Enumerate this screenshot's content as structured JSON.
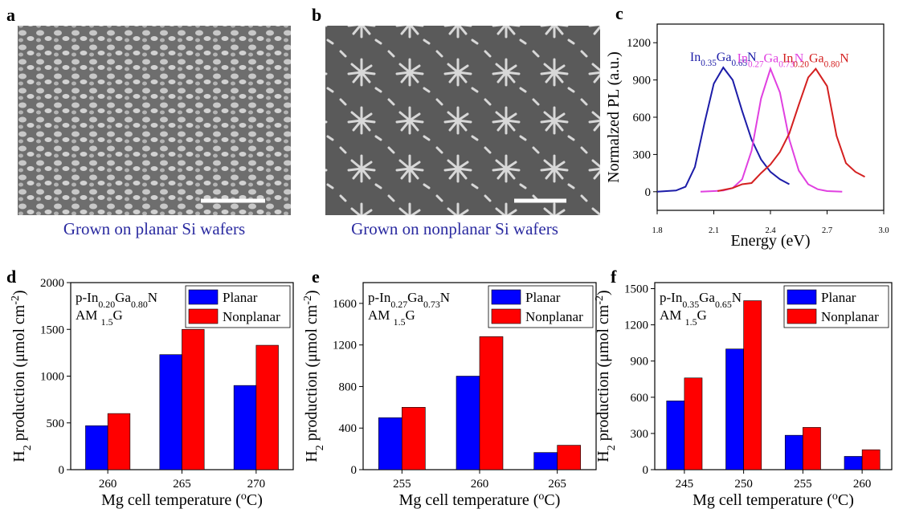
{
  "images": [
    {
      "label": "a",
      "caption": "Grown on planar Si wafers"
    },
    {
      "label": "b",
      "caption": "Grown on nonplanar Si wafers"
    }
  ],
  "chart_data": [
    {
      "type": "line",
      "label": "c",
      "xlabel": "Energy (eV)",
      "ylabel": "Normalzed PL (a.u.)",
      "xlim": [
        1.8,
        3.0
      ],
      "xticks": [
        1.8,
        2.1,
        2.4,
        2.7,
        {
          "value": 3,
          "label": "3.0"
        }
      ],
      "ylim": [
        -150,
        1350
      ],
      "yticks": [
        0,
        300,
        600,
        900,
        1200
      ],
      "series": [
        {
          "name": "In0.35Ga0.65N",
          "color": "#1c1ca8",
          "x": [
            1.8,
            1.85,
            1.9,
            1.95,
            2.0,
            2.05,
            2.1,
            2.15,
            2.2,
            2.25,
            2.3,
            2.35,
            2.4,
            2.45,
            2.5
          ],
          "values": [
            0,
            5,
            10,
            40,
            200,
            550,
            870,
            1000,
            900,
            650,
            420,
            260,
            160,
            100,
            60
          ]
        },
        {
          "name": "In0.27Ga0.73N",
          "color": "#e040e0",
          "x": [
            2.03,
            2.1,
            2.15,
            2.2,
            2.25,
            2.3,
            2.35,
            2.4,
            2.45,
            2.5,
            2.55,
            2.6,
            2.65,
            2.7,
            2.78
          ],
          "values": [
            0,
            5,
            10,
            30,
            100,
            330,
            750,
            990,
            800,
            420,
            170,
            60,
            20,
            5,
            0
          ]
        },
        {
          "name": "In0.20Ga0.80N",
          "color": "#d42020",
          "x": [
            2.12,
            2.2,
            2.25,
            2.3,
            2.35,
            2.4,
            2.45,
            2.5,
            2.55,
            2.6,
            2.64,
            2.7,
            2.75,
            2.8,
            2.85,
            2.9
          ],
          "values": [
            5,
            30,
            60,
            70,
            150,
            220,
            320,
            470,
            700,
            920,
            990,
            850,
            450,
            230,
            160,
            120
          ]
        }
      ]
    },
    {
      "type": "bar",
      "label": "d",
      "annotations": [
        "p-In0.20Ga0.80N",
        "AM 1.5G"
      ],
      "xlabel": "Mg cell temperature (oC)",
      "ylabel": "H2 production (μmol cm-2)",
      "categories": [
        "260",
        "265",
        "270"
      ],
      "ylim": [
        0,
        2000
      ],
      "yticks": [
        0,
        500,
        1000,
        1500,
        2000
      ],
      "legend": "upper right",
      "series": [
        {
          "name": "Planar",
          "color": "#0000ff",
          "values": [
            470,
            1230,
            900
          ]
        },
        {
          "name": "Nonplanar",
          "color": "#ff0000",
          "values": [
            600,
            1500,
            1330
          ]
        }
      ]
    },
    {
      "type": "bar",
      "label": "e",
      "annotations": [
        "p-In0.27Ga0.73N",
        "AM 1.5G"
      ],
      "xlabel": "Mg cell temperature (oC)",
      "ylabel": "H2 production (μmol cm-2)",
      "categories": [
        "255",
        "260",
        "265"
      ],
      "ylim": [
        0,
        1800
      ],
      "yticks": [
        0,
        400,
        800,
        1200,
        1600
      ],
      "legend": "upper right",
      "series": [
        {
          "name": "Planar",
          "color": "#0000ff",
          "values": [
            500,
            900,
            165
          ]
        },
        {
          "name": "Nonplanar",
          "color": "#ff0000",
          "values": [
            600,
            1280,
            235
          ]
        }
      ]
    },
    {
      "type": "bar",
      "label": "f",
      "annotations": [
        "p-In0.35Ga0.65N",
        "AM 1.5G"
      ],
      "xlabel": "Mg cell temperature (oC)",
      "ylabel": "H2 production (μmol cm-2)",
      "categories": [
        "245",
        "250",
        "255",
        "260"
      ],
      "ylim": [
        0,
        1550
      ],
      "yticks": [
        0,
        300,
        600,
        900,
        1200,
        1500
      ],
      "legend": "upper right",
      "series": [
        {
          "name": "Planar",
          "color": "#0000ff",
          "values": [
            570,
            1000,
            285,
            110
          ]
        },
        {
          "name": "Nonplanar",
          "color": "#ff0000",
          "values": [
            760,
            1400,
            350,
            165
          ]
        }
      ]
    }
  ]
}
